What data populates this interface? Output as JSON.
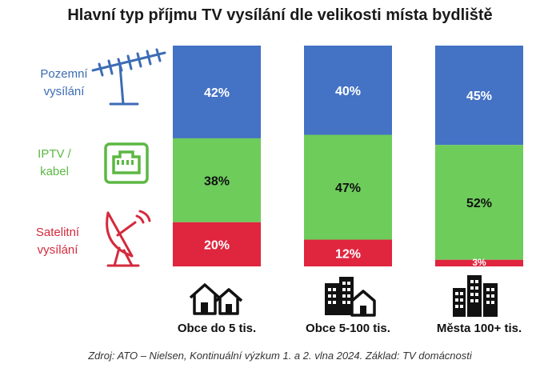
{
  "chart_data": {
    "type": "bar",
    "stacked": true,
    "title": "Hlavní typ příjmu TV vysílání dle velikosti místa bydliště",
    "categories": [
      "Obce do 5 tis.",
      "Obce 5-100 tis.",
      "Města 100+ tis."
    ],
    "series": [
      {
        "name": "Pozemní vysílání",
        "values": [
          42,
          40,
          45
        ],
        "labels": [
          "42%",
          "40%",
          "45%"
        ],
        "color": "#4472c4"
      },
      {
        "name": "IPTV / kabel",
        "values": [
          38,
          47,
          52
        ],
        "labels": [
          "38%",
          "47%",
          "52%"
        ],
        "color": "#6dcc5a"
      },
      {
        "name": "Satelitní vysílání",
        "values": [
          20,
          12,
          3
        ],
        "labels": [
          "20%",
          "12%",
          "3%"
        ],
        "color": "#e0253f"
      }
    ],
    "ylim": [
      0,
      100
    ],
    "legend_position": "left"
  },
  "legend": [
    {
      "line1": "Pozemní",
      "line2": "vysílání",
      "color": "#3c6cb4",
      "icon": "antenna-icon"
    },
    {
      "line1": "IPTV /",
      "line2": "kabel",
      "color": "#5cb843",
      "icon": "ethernet-port-icon"
    },
    {
      "line1": "Satelitní",
      "line2": "vysílání",
      "color": "#d42a3d",
      "icon": "satellite-dish-icon"
    }
  ],
  "category_icons": [
    "small-houses-icon",
    "houses-and-buildings-icon",
    "city-buildings-icon"
  ],
  "source": "Zdroj: ATO – Nielsen, Kontinuální výzkum 1. a 2. vlna 2024. Základ: TV domácnosti"
}
